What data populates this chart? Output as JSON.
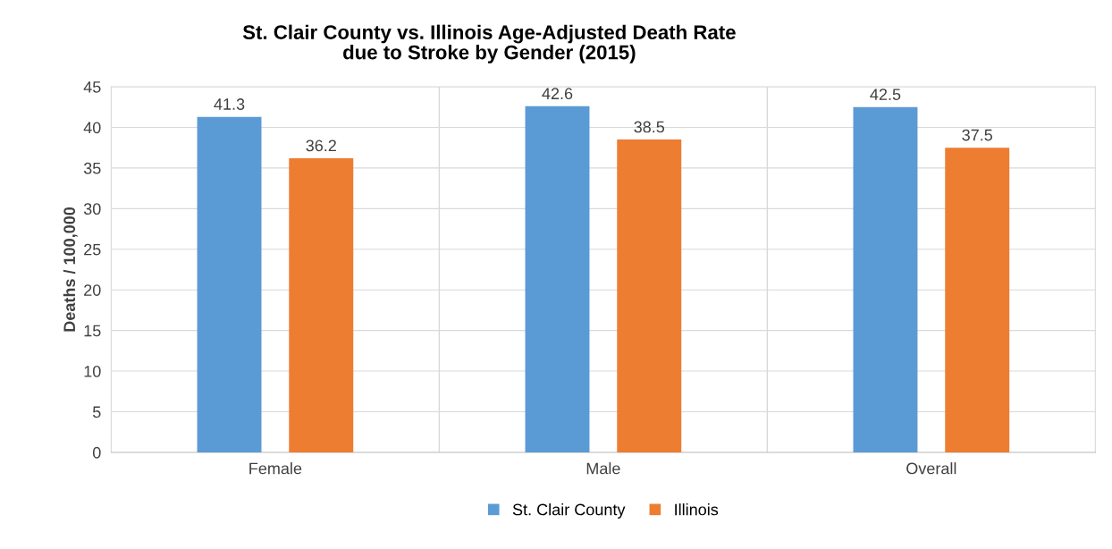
{
  "chart_data": {
    "type": "bar",
    "title": "St. Clair County vs. Illinois Age-Adjusted Death Rate\ndue to Stroke by Gender (2015)",
    "ylabel": "Deaths / 100,000",
    "categories": [
      "Female",
      "Male",
      "Overall"
    ],
    "series": [
      {
        "name": "St. Clair County",
        "color": "#5b9bd5",
        "values": [
          41.3,
          42.6,
          42.5
        ]
      },
      {
        "name": "Illinois",
        "color": "#ed7d31",
        "values": [
          36.2,
          38.5,
          37.5
        ]
      }
    ],
    "ylim": [
      0,
      45
    ],
    "yticks": [
      0,
      5,
      10,
      15,
      20,
      25,
      30,
      35,
      40,
      45
    ],
    "grid": true,
    "data_labels": true,
    "legend": "bottom"
  }
}
